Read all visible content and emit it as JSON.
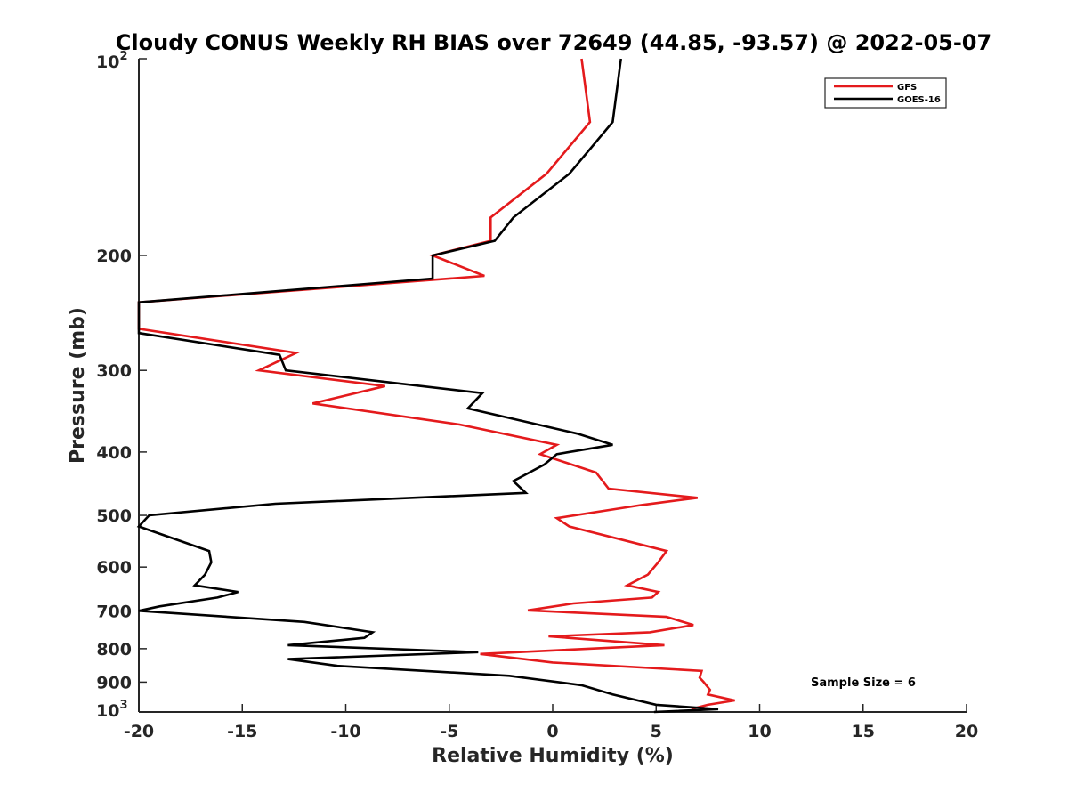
{
  "chart_data": {
    "type": "line",
    "title": "Cloudy CONUS Weekly RH BIAS over 72649 (44.85, -93.57) @ 2022-05-07",
    "xlabel": "Relative Humidity (%)",
    "ylabel": "Pressure (mb)",
    "xlim": [
      -20,
      20
    ],
    "ylim": [
      100,
      1000
    ],
    "y_scale": "log",
    "y_reversed": true,
    "grid": false,
    "legend_position": "top-right",
    "x_ticks": [
      "-20",
      "-15",
      "-10",
      "-5",
      "0",
      "5",
      "10",
      "15",
      "20"
    ],
    "y_ticks": [
      {
        "value": 100,
        "base": "10",
        "exp": "2"
      },
      {
        "value": 200,
        "label": "200"
      },
      {
        "value": 300,
        "label": "300"
      },
      {
        "value": 400,
        "label": "400"
      },
      {
        "value": 500,
        "label": "500"
      },
      {
        "value": 600,
        "label": "600"
      },
      {
        "value": 700,
        "label": "700"
      },
      {
        "value": 800,
        "label": "800"
      },
      {
        "value": 900,
        "label": "900"
      },
      {
        "value": 1000,
        "base": "10",
        "exp": "3"
      }
    ],
    "annotation": "Sample Size = 6",
    "series": [
      {
        "name": "GFS",
        "color": "#e41a1c",
        "points": [
          [
            1.4,
            100
          ],
          [
            1.8,
            125
          ],
          [
            -0.3,
            150
          ],
          [
            -3.0,
            175
          ],
          [
            -3.0,
            190
          ],
          [
            -5.8,
            200
          ],
          [
            -3.3,
            215
          ],
          [
            -20.0,
            236
          ],
          [
            -20.0,
            259
          ],
          [
            -12.4,
            282
          ],
          [
            -14.2,
            300
          ],
          [
            -8.1,
            317
          ],
          [
            -11.6,
            337
          ],
          [
            -4.5,
            363
          ],
          [
            0.2,
            390
          ],
          [
            -0.6,
            403
          ],
          [
            2.1,
            430
          ],
          [
            2.7,
            455
          ],
          [
            7.0,
            470
          ],
          [
            4.3,
            482
          ],
          [
            0.2,
            505
          ],
          [
            0.8,
            520
          ],
          [
            5.5,
            567
          ],
          [
            5.1,
            590
          ],
          [
            4.6,
            616
          ],
          [
            3.6,
            640
          ],
          [
            5.1,
            655
          ],
          [
            4.8,
            668
          ],
          [
            1.0,
            682
          ],
          [
            -1.2,
            699
          ],
          [
            5.5,
            715
          ],
          [
            6.8,
            736
          ],
          [
            4.7,
            755
          ],
          [
            -0.2,
            766
          ],
          [
            5.4,
            790
          ],
          [
            -3.5,
            815
          ],
          [
            0.0,
            840
          ],
          [
            7.2,
            865
          ],
          [
            7.1,
            886
          ],
          [
            7.3,
            900
          ],
          [
            7.6,
            925
          ],
          [
            7.5,
            940
          ],
          [
            8.8,
            960
          ],
          [
            7.5,
            975
          ],
          [
            6.7,
            990
          ]
        ]
      },
      {
        "name": "GOES-16",
        "color": "#000000",
        "points": [
          [
            3.3,
            100
          ],
          [
            2.9,
            125
          ],
          [
            0.8,
            150
          ],
          [
            -1.9,
            175
          ],
          [
            -2.8,
            190
          ],
          [
            -5.8,
            200
          ],
          [
            -5.8,
            217
          ],
          [
            -20.0,
            236
          ],
          [
            -20.0,
            263
          ],
          [
            -13.2,
            284
          ],
          [
            -12.9,
            300
          ],
          [
            -3.4,
            325
          ],
          [
            -4.1,
            343
          ],
          [
            1.2,
            375
          ],
          [
            2.9,
            390
          ],
          [
            0.2,
            403
          ],
          [
            -0.4,
            418
          ],
          [
            -1.9,
            443
          ],
          [
            -1.3,
            462
          ],
          [
            -13.4,
            480
          ],
          [
            -19.5,
            500
          ],
          [
            -20.0,
            520
          ],
          [
            -16.6,
            567
          ],
          [
            -16.5,
            590
          ],
          [
            -16.8,
            616
          ],
          [
            -17.3,
            640
          ],
          [
            -15.2,
            655
          ],
          [
            -16.2,
            668
          ],
          [
            -19.0,
            689
          ],
          [
            -20.0,
            700
          ],
          [
            -12.0,
            728
          ],
          [
            -8.7,
            755
          ],
          [
            -9.1,
            770
          ],
          [
            -12.8,
            790
          ],
          [
            -3.6,
            810
          ],
          [
            -12.8,
            830
          ],
          [
            -10.4,
            850
          ],
          [
            -2.1,
            880
          ],
          [
            1.4,
            910
          ],
          [
            2.9,
            940
          ],
          [
            5.0,
            975
          ],
          [
            8.0,
            990
          ],
          [
            4.9,
            1000
          ]
        ]
      }
    ]
  }
}
